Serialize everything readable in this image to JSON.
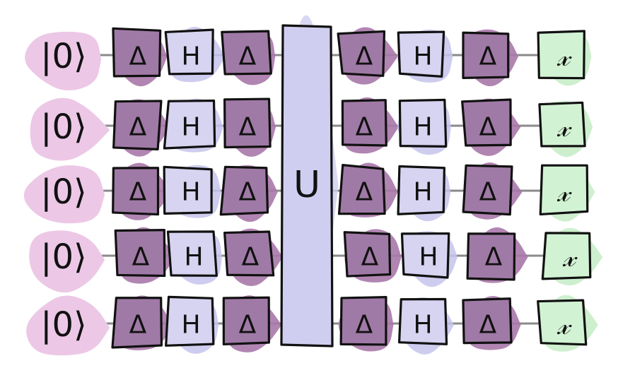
{
  "circuit": {
    "qubit_count": 5,
    "initial_state_label": "|0⟩",
    "big_gate_label": "U",
    "gate_sequence_before": [
      "Δ",
      "H",
      "Δ"
    ],
    "gate_sequence_after": [
      "Δ",
      "H",
      "Δ"
    ],
    "measurement_symbol": "𝓍",
    "colors": {
      "init_blob": "#ecc8e6",
      "delta_fill": "#a07aa6",
      "delta_blob": "#a878aa",
      "h_fill": "#d6d4f0",
      "h_blob": "#c6c4ec",
      "u_fill": "#d0cef0",
      "measure_fill": "#d2f2d4",
      "measure_blob": "#c4ecc6",
      "wire": "#8a8a8a",
      "stroke": "#111111"
    }
  }
}
